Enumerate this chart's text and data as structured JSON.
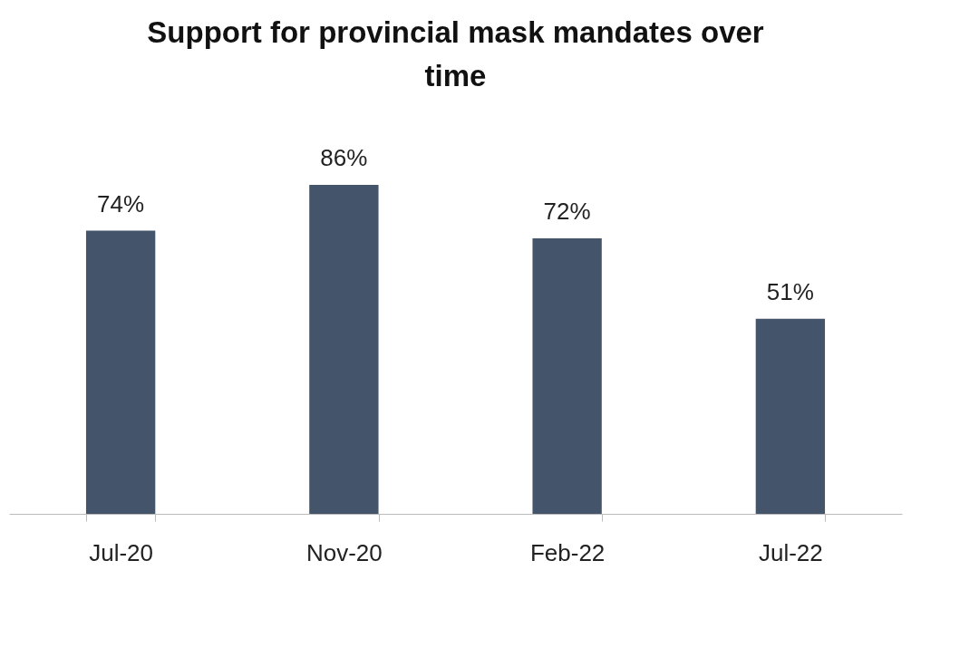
{
  "chart_data": {
    "type": "bar",
    "title": "Support for provincial mask mandates over time",
    "categories": [
      "Jul-20",
      "Nov-20",
      "Feb-22",
      "Jul-22"
    ],
    "values": [
      74,
      86,
      72,
      51
    ],
    "value_labels": [
      "74%",
      "86%",
      "72%",
      "51%"
    ],
    "color": "#44546a"
  }
}
